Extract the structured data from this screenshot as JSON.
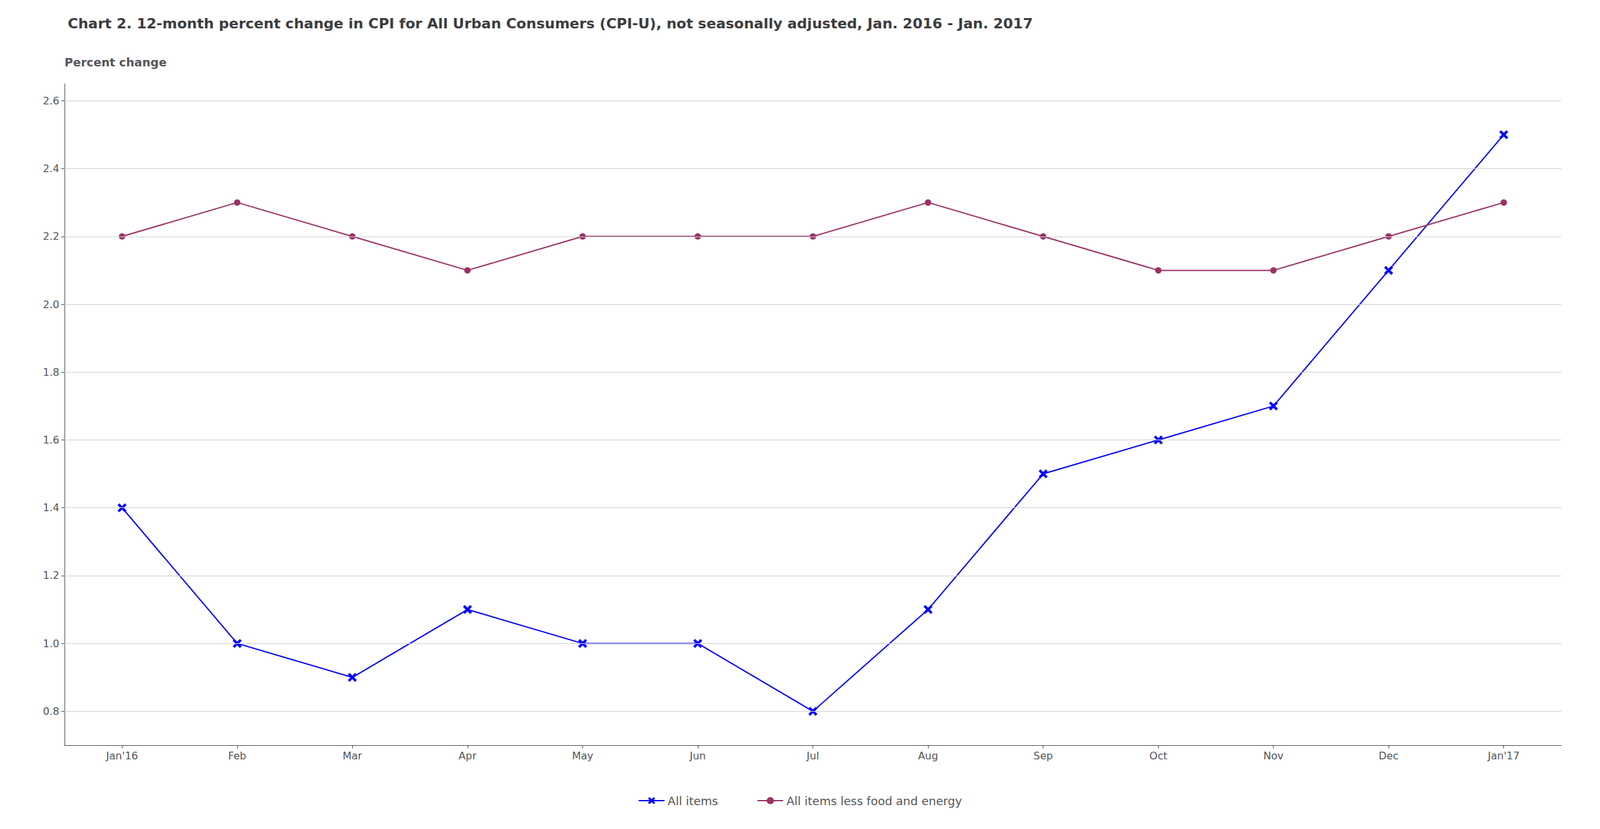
{
  "chart_data": {
    "type": "line",
    "title": "Chart 2. 12-month percent change in CPI for All Urban Consumers (CPI-U), not seasonally adjusted, Jan. 2016 - Jan. 2017",
    "ylabel": "Percent change",
    "categories": [
      "Jan'16",
      "Feb",
      "Mar",
      "Apr",
      "May",
      "Jun",
      "Jul",
      "Aug",
      "Sep",
      "Oct",
      "Nov",
      "Dec",
      "Jan'17"
    ],
    "series": [
      {
        "name": "All items",
        "color": "#0000FF",
        "marker": "x",
        "values": [
          1.4,
          1.0,
          0.9,
          1.1,
          1.0,
          1.0,
          0.8,
          1.1,
          1.5,
          1.6,
          1.7,
          2.1,
          2.5
        ]
      },
      {
        "name": "All items less food and energy",
        "color": "#993366",
        "marker": "circle",
        "values": [
          2.2,
          2.3,
          2.2,
          2.1,
          2.2,
          2.2,
          2.2,
          2.3,
          2.2,
          2.1,
          2.1,
          2.2,
          2.3
        ]
      }
    ],
    "ylim": [
      0.7,
      2.65
    ],
    "yticks": [
      0.8,
      {
        "value": 1.0,
        "label": "1.0"
      },
      1.2,
      1.4,
      1.6,
      1.8,
      {
        "value": 2.0,
        "label": "2.0"
      },
      2.2,
      2.4,
      2.6
    ],
    "grid": true,
    "legend": "bottom"
  }
}
